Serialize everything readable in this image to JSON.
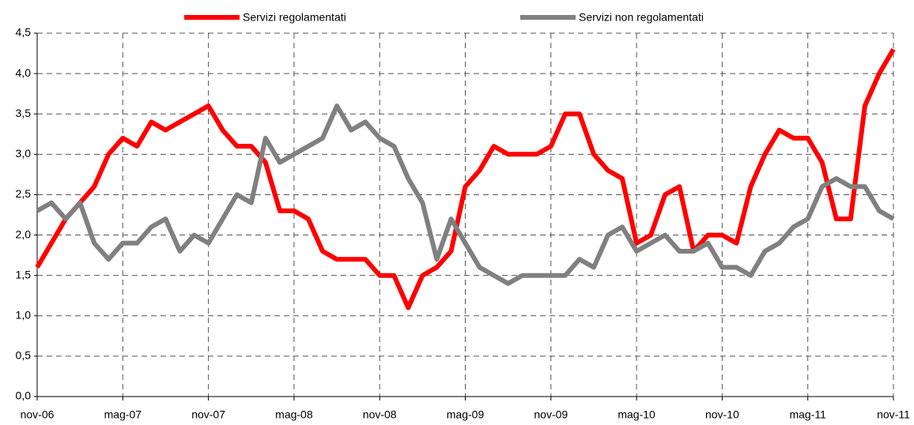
{
  "chart_data": {
    "type": "line",
    "categories": [
      "nov-06",
      null,
      null,
      null,
      null,
      null,
      "mag-07",
      null,
      null,
      null,
      null,
      null,
      "nov-07",
      null,
      null,
      null,
      null,
      null,
      "mag-08",
      null,
      null,
      null,
      null,
      null,
      "nov-08",
      null,
      null,
      null,
      null,
      null,
      "mag-09",
      null,
      null,
      null,
      null,
      null,
      "nov-09",
      null,
      null,
      null,
      null,
      null,
      "mag-10",
      null,
      null,
      null,
      null,
      null,
      "nov-10",
      null,
      null,
      null,
      null,
      null,
      "mag-11",
      null,
      null,
      null,
      null,
      null,
      "nov-11"
    ],
    "series": [
      {
        "name": "Servizi regolamentati",
        "color": "#ff0000",
        "values": [
          1.6,
          1.9,
          2.2,
          2.4,
          2.6,
          3.0,
          3.2,
          3.1,
          3.4,
          3.3,
          3.4,
          3.5,
          3.6,
          3.3,
          3.1,
          3.1,
          2.9,
          2.3,
          2.3,
          2.2,
          1.8,
          1.7,
          1.7,
          1.7,
          1.5,
          1.5,
          1.1,
          1.5,
          1.6,
          1.8,
          2.6,
          2.8,
          3.1,
          3.0,
          3.0,
          3.0,
          3.1,
          3.5,
          3.5,
          3.0,
          2.8,
          2.7,
          1.9,
          2.0,
          2.5,
          2.6,
          1.8,
          2.0,
          2.0,
          1.9,
          2.6,
          3.0,
          3.3,
          3.2,
          3.2,
          2.9,
          2.2,
          2.2,
          3.6,
          4.0,
          4.3
        ]
      },
      {
        "name": "Servizi non regolamentati",
        "color": "#808080",
        "values": [
          2.3,
          2.4,
          2.2,
          2.4,
          1.9,
          1.7,
          1.9,
          1.9,
          2.1,
          2.2,
          1.8,
          2.0,
          1.9,
          2.2,
          2.5,
          2.4,
          3.2,
          2.9,
          3.0,
          3.1,
          3.2,
          3.6,
          3.3,
          3.4,
          3.2,
          3.1,
          2.7,
          2.4,
          1.7,
          2.2,
          1.9,
          1.6,
          1.5,
          1.4,
          1.5,
          1.5,
          1.5,
          1.5,
          1.7,
          1.6,
          2.0,
          2.1,
          1.8,
          1.9,
          2.0,
          1.8,
          1.8,
          1.9,
          1.6,
          1.6,
          1.5,
          1.8,
          1.9,
          2.1,
          2.2,
          2.6,
          2.7,
          2.6,
          2.6,
          2.3,
          2.2
        ]
      }
    ],
    "ylim": [
      0,
      4.5
    ],
    "yticks": [
      {
        "value": 0,
        "label": "0,0"
      },
      {
        "value": 0.5,
        "label": "0,5"
      },
      {
        "value": 1,
        "label": "1,0"
      },
      {
        "value": 1.5,
        "label": "1,5"
      },
      {
        "value": 2,
        "label": "2,0"
      },
      {
        "value": 2.5,
        "label": "2,5"
      },
      {
        "value": 3,
        "label": "3,0"
      },
      {
        "value": 3.5,
        "label": "3,5"
      },
      {
        "value": 4,
        "label": "4,0"
      },
      {
        "value": 4.5,
        "label": "4,5"
      }
    ],
    "grid": true
  }
}
